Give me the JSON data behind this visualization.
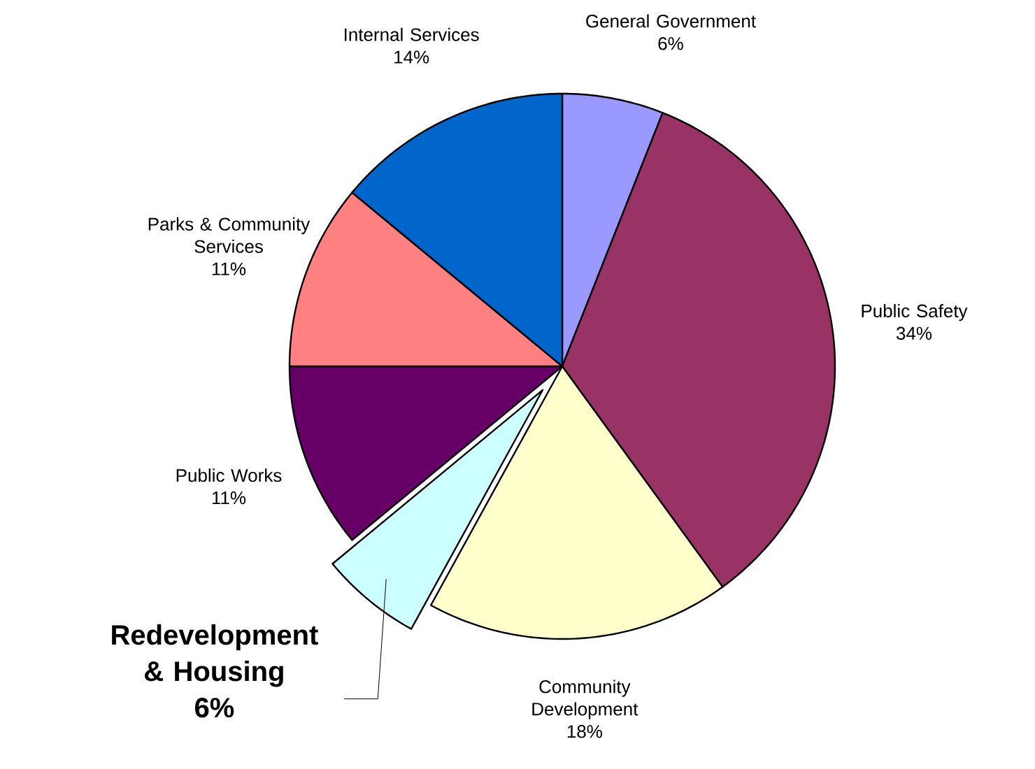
{
  "chart_data": {
    "type": "pie",
    "categories": [
      "General Government",
      "Public Safety",
      "Community Development",
      "Redevelopment & Housing",
      "Public Works",
      "Parks & Community Services",
      "Internal Services"
    ],
    "values": [
      6,
      34,
      18,
      6,
      11,
      11,
      14
    ],
    "value_labels": [
      "6%",
      "34%",
      "18%",
      "6%",
      "11%",
      "11%",
      "14%"
    ],
    "colors": [
      "#9999ff",
      "#993366",
      "#ffffcc",
      "#ccffff",
      "#660066",
      "#ff8080",
      "#0066cc"
    ]
  }
}
